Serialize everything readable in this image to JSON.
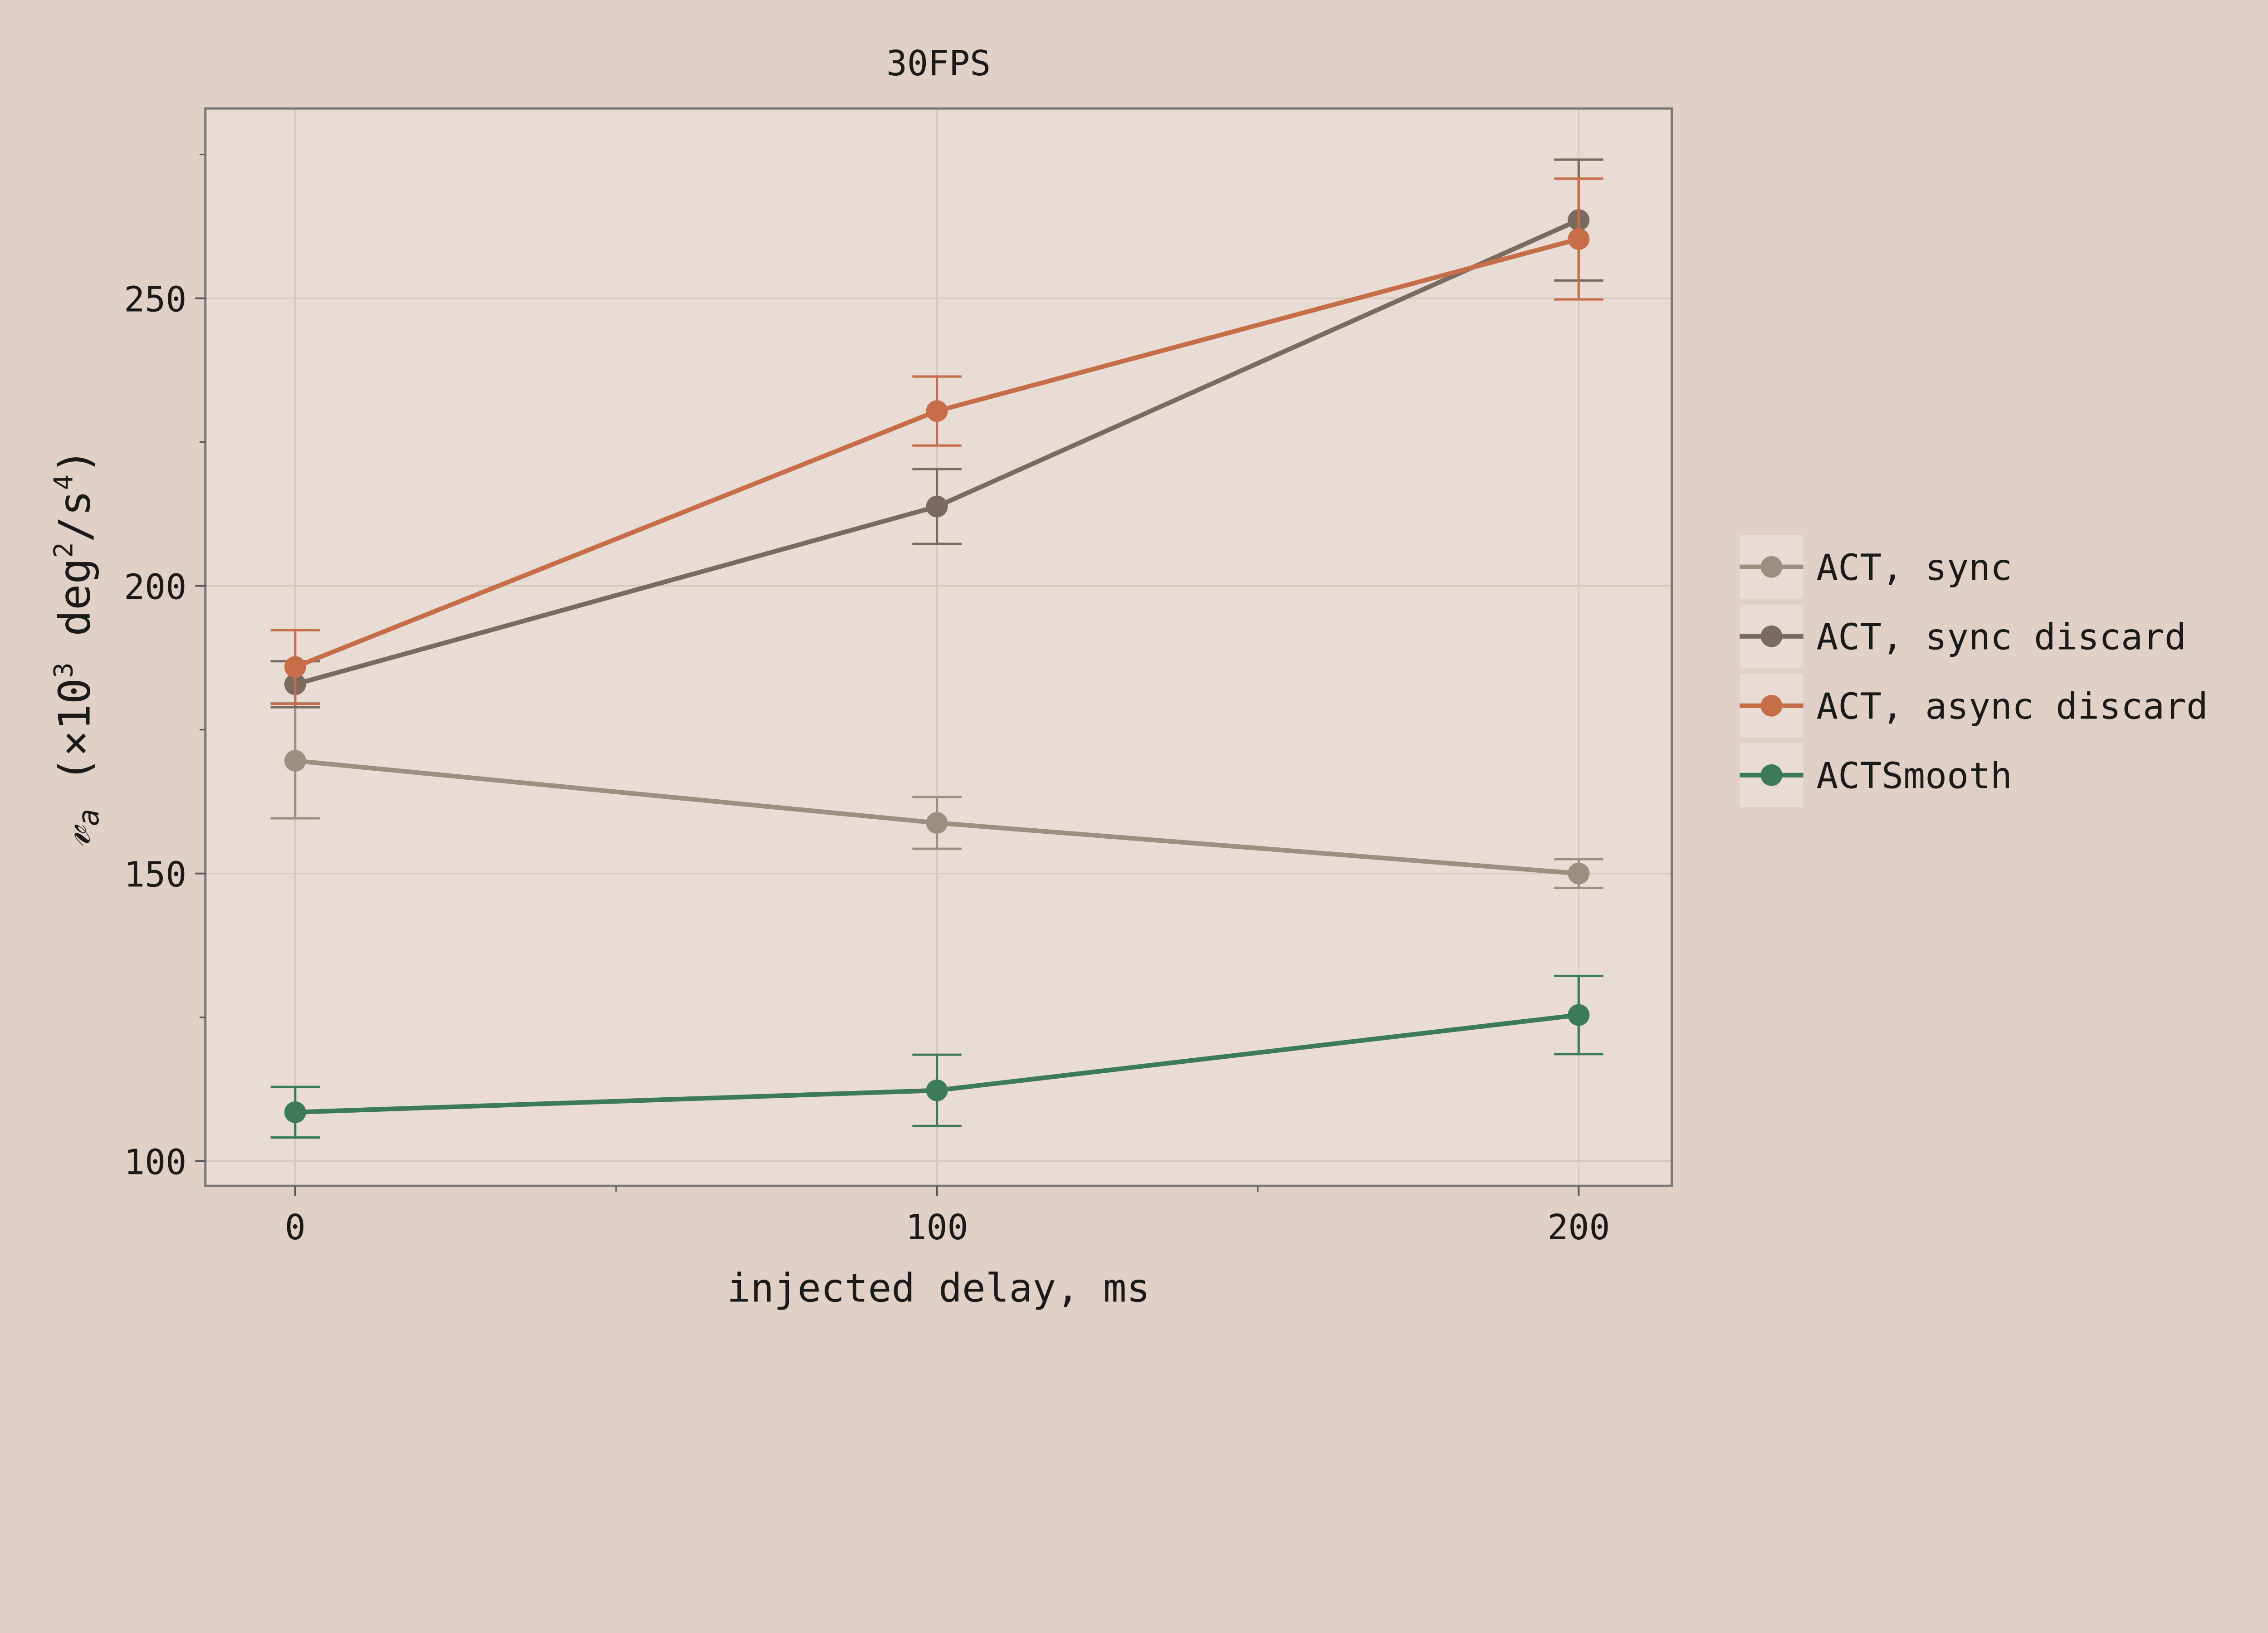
{
  "chart_data": {
    "type": "line",
    "title": "30FPS",
    "xlabel": "injected delay, ms",
    "ylabel": "𝓋a (×10³ deg²/s⁴)",
    "ylabel_parts": {
      "symbol": "𝓋",
      "subscript": "a",
      "open": " (×10",
      "exp1": "3",
      "unit": " deg",
      "exp2": "2",
      "unit2": "/s",
      "exp3": "4",
      "close": ")"
    },
    "x": [
      0,
      100,
      200
    ],
    "xticks": [
      "0",
      "100",
      "200"
    ],
    "yticks": [
      "100",
      "150",
      "200",
      "250"
    ],
    "xlim": [
      -14,
      214.5
    ],
    "ylim": [
      95.7,
      283
    ],
    "grid": true,
    "legend_position": "right-outside",
    "series": [
      {
        "name": "ACT, sync",
        "color": "#9d8f80",
        "values": [
          169.6,
          158.8,
          150.0
        ],
        "errors": [
          10.0,
          4.5,
          2.5
        ]
      },
      {
        "name": "ACT, sync discard",
        "color": "#7a6a5f",
        "values": [
          182.9,
          213.8,
          263.6
        ],
        "errors": [
          4.0,
          6.5,
          10.5
        ]
      },
      {
        "name": "ACT, async discard",
        "color": "#c66e4a",
        "values": [
          185.9,
          230.4,
          260.3
        ],
        "errors": [
          6.4,
          6.0,
          10.5
        ]
      },
      {
        "name": "ACTSmooth",
        "color": "#3d7a5a",
        "values": [
          108.5,
          112.3,
          125.4
        ],
        "errors": [
          4.4,
          6.2,
          6.8
        ]
      }
    ]
  }
}
